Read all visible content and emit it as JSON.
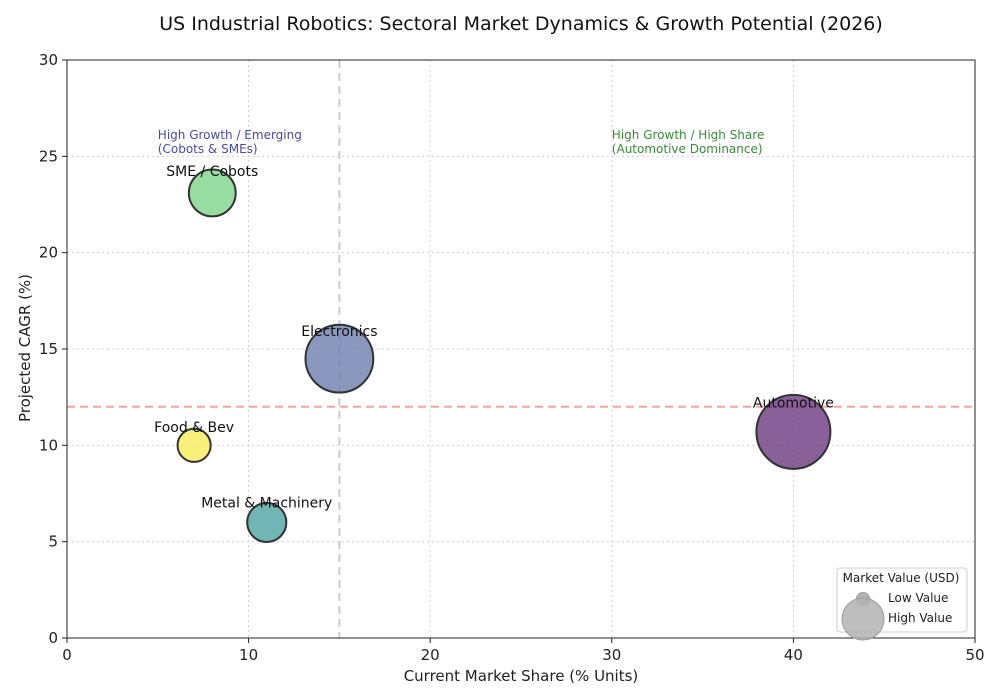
{
  "chart_data": {
    "type": "scatter",
    "subtype": "bubble",
    "title": "US Industrial Robotics: Sectoral Market Dynamics & Growth Potential (2026)",
    "xlabel": "Current Market Share (% Units)",
    "ylabel": "Projected CAGR (%)",
    "xlim": [
      0,
      50
    ],
    "ylim": [
      0,
      30
    ],
    "xticks": [
      0,
      10,
      20,
      30,
      40,
      50
    ],
    "yticks": [
      0,
      5,
      10,
      15,
      20,
      25,
      30
    ],
    "grid": true,
    "reference_lines": {
      "x": 15,
      "x_color": "#cccccc",
      "y": 12,
      "y_color": "#f4a5a0"
    },
    "series": [
      {
        "name": "Automotive",
        "x": 40,
        "y": 10.7,
        "market_value_rel": 1.0,
        "color": "#6b3a7e"
      },
      {
        "name": "Electronics",
        "x": 15,
        "y": 14.5,
        "market_value_rel": 0.84,
        "color": "#6b7eab"
      },
      {
        "name": "SME / Cobots",
        "x": 8,
        "y": 23.1,
        "market_value_rel": 0.4,
        "color": "#7dd389"
      },
      {
        "name": "Metal & Machinery",
        "x": 11,
        "y": 6,
        "market_value_rel": 0.28,
        "color": "#4fa3a3"
      },
      {
        "name": "Food & Bev",
        "x": 7,
        "y": 10,
        "market_value_rel": 0.2,
        "color": "#f8eb5a"
      }
    ],
    "annotations": [
      {
        "lines": [
          "High Growth / Emerging",
          "(Cobots & SMEs)"
        ],
        "x": 5,
        "y": 25.9,
        "color": "#4a4a9e"
      },
      {
        "lines": [
          "High Growth / High Share",
          "(Automotive Dominance)"
        ],
        "x": 30,
        "y": 25.9,
        "color": "#3a8a3a"
      }
    ],
    "legend": {
      "title": "Market Value (USD)",
      "entries": [
        "Low Value",
        "High Value"
      ],
      "placement": "bottom-right"
    }
  }
}
